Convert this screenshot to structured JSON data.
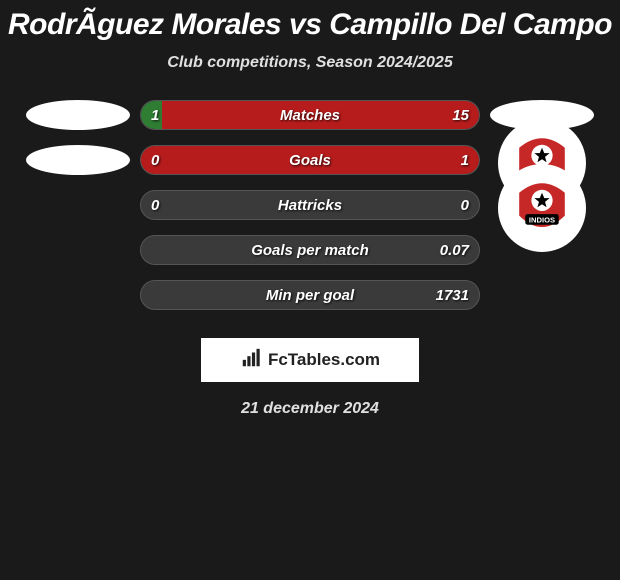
{
  "title": "RodrÃ­guez Morales vs Campillo Del Campo",
  "subtitle": "Club competitions, Season 2024/2025",
  "date": "21 december 2024",
  "branding": "FcTables.com",
  "colors": {
    "bg": "#1a1a1a",
    "bar_track": "#3a3a3a",
    "left_fill": "#2e7d32",
    "right_fill": "#b71c1c",
    "text": "#ffffff"
  },
  "rows": [
    {
      "label": "Matches",
      "left": "1",
      "right": "15",
      "left_pct": 6.25,
      "right_pct": 93.75,
      "show_left_oval": true,
      "show_right_oval": true,
      "show_right_logo": false
    },
    {
      "label": "Goals",
      "left": "0",
      "right": "1",
      "left_pct": 0,
      "right_pct": 100,
      "show_left_oval": true,
      "show_right_oval": false,
      "show_right_logo": true
    },
    {
      "label": "Hattricks",
      "left": "0",
      "right": "0",
      "left_pct": 0,
      "right_pct": 0,
      "show_left_oval": false,
      "show_right_oval": false,
      "show_right_logo": true
    },
    {
      "label": "Goals per match",
      "left": "",
      "right": "0.07",
      "left_pct": 0,
      "right_pct": 0,
      "show_left_oval": false,
      "show_right_oval": false,
      "show_right_logo": false
    },
    {
      "label": "Min per goal",
      "left": "",
      "right": "1731",
      "left_pct": 0,
      "right_pct": 0,
      "show_left_oval": false,
      "show_right_oval": false,
      "show_right_logo": false
    }
  ]
}
